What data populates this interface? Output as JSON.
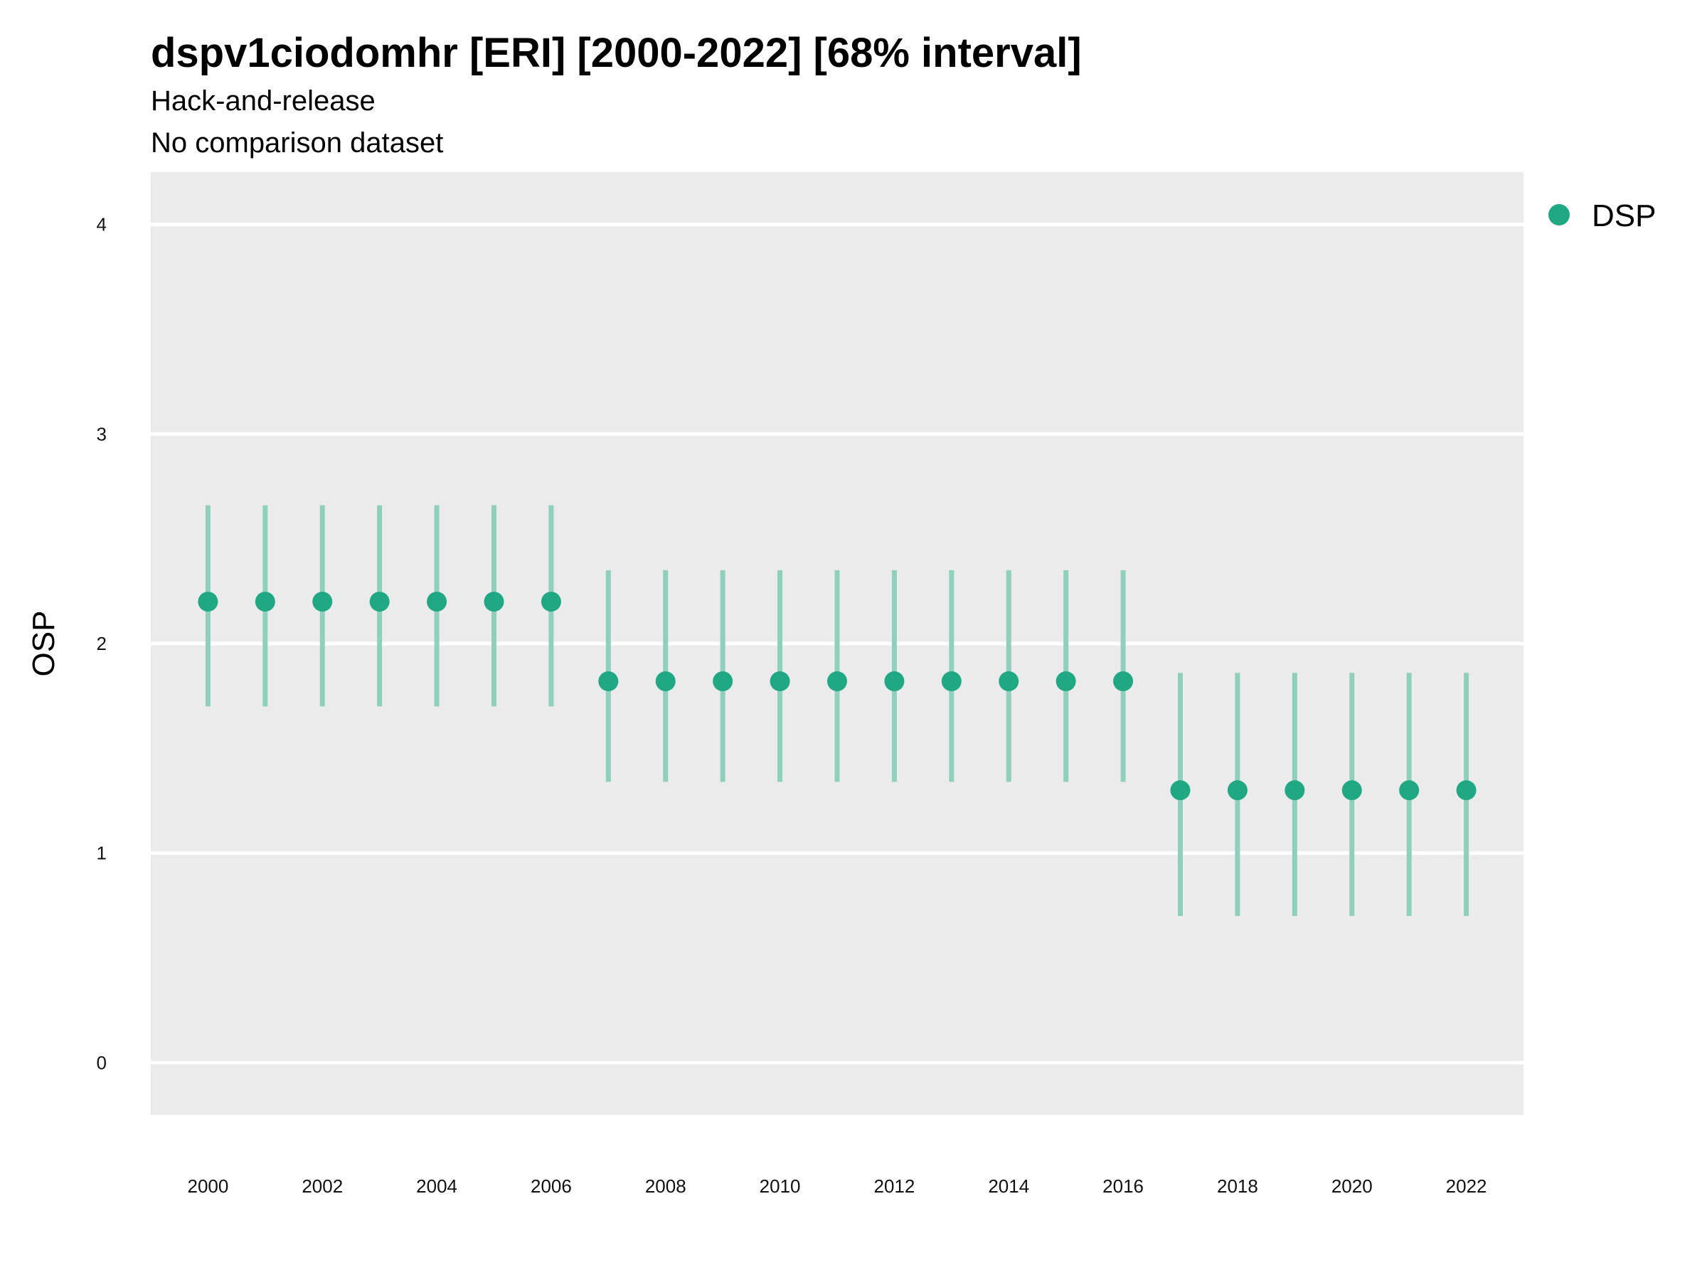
{
  "chart_data": {
    "type": "scatter",
    "title": "dspv1ciodomhr [ERI] [2000-2022] [68% interval]",
    "subtitles": [
      "Hack-and-release",
      "No comparison dataset"
    ],
    "xlabel": "",
    "ylabel": "OSP",
    "xlim": [
      1999,
      2023
    ],
    "ylim": [
      -0.25,
      4.25
    ],
    "x_ticks": [
      2000,
      2002,
      2004,
      2006,
      2008,
      2010,
      2012,
      2014,
      2016,
      2018,
      2020,
      2022
    ],
    "y_ticks": [
      0,
      1,
      2,
      3,
      4
    ],
    "grid": true,
    "legend_position": "right",
    "series": [
      {
        "name": "DSP",
        "color": "#1fa883",
        "x": [
          2000,
          2001,
          2002,
          2003,
          2004,
          2005,
          2006,
          2007,
          2008,
          2009,
          2010,
          2011,
          2012,
          2013,
          2014,
          2015,
          2016,
          2017,
          2018,
          2019,
          2020,
          2021,
          2022
        ],
        "y": [
          2.2,
          2.2,
          2.2,
          2.2,
          2.2,
          2.2,
          2.2,
          1.82,
          1.82,
          1.82,
          1.82,
          1.82,
          1.82,
          1.82,
          1.82,
          1.82,
          1.82,
          1.3,
          1.3,
          1.3,
          1.3,
          1.3,
          1.3
        ],
        "lower": [
          1.7,
          1.7,
          1.7,
          1.7,
          1.7,
          1.7,
          1.7,
          1.34,
          1.34,
          1.34,
          1.34,
          1.34,
          1.34,
          1.34,
          1.34,
          1.34,
          1.34,
          0.7,
          0.7,
          0.7,
          0.7,
          0.7,
          0.7
        ],
        "upper": [
          2.66,
          2.66,
          2.66,
          2.66,
          2.66,
          2.66,
          2.66,
          2.35,
          2.35,
          2.35,
          2.35,
          2.35,
          2.35,
          2.35,
          2.35,
          2.35,
          2.35,
          1.86,
          1.86,
          1.86,
          1.86,
          1.86,
          1.86
        ]
      }
    ],
    "colors": {
      "panel_background": "#ebebeb",
      "grid": "#ffffff",
      "point": "#1fa883",
      "interval": "#8fd0bd"
    }
  }
}
